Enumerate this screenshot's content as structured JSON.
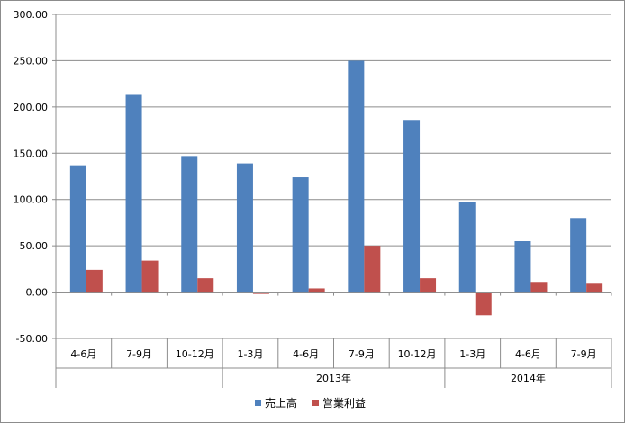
{
  "chart_data": {
    "type": "bar",
    "title": "",
    "xlabel": "",
    "ylabel": "",
    "ylim": [
      -50,
      300
    ],
    "yticks": [
      -50,
      0,
      50,
      100,
      150,
      200,
      250,
      300
    ],
    "ytick_labels": [
      "-50.00",
      "0.00",
      "50.00",
      "100.00",
      "150.00",
      "200.00",
      "250.00",
      "300.00"
    ],
    "grid": true,
    "legend_position": "bottom",
    "categories": [
      "4-6月",
      "7-9月",
      "10-12月",
      "1-3月",
      "4-6月",
      "7-9月",
      "10-12月",
      "1-3月",
      "4-6月",
      "7-9月"
    ],
    "groups": [
      {
        "label": "",
        "span": 3
      },
      {
        "label": "2013年",
        "span": 4
      },
      {
        "label": "2014年",
        "span": 3
      }
    ],
    "series": [
      {
        "name": "売上高",
        "color": "#4f81bd",
        "values": [
          137,
          213,
          147,
          139,
          124,
          250,
          186,
          97,
          55,
          80
        ]
      },
      {
        "name": "営業利益",
        "color": "#c0504d",
        "values": [
          24,
          34,
          15,
          -2,
          4,
          50,
          15,
          -25,
          11,
          10
        ]
      }
    ]
  }
}
